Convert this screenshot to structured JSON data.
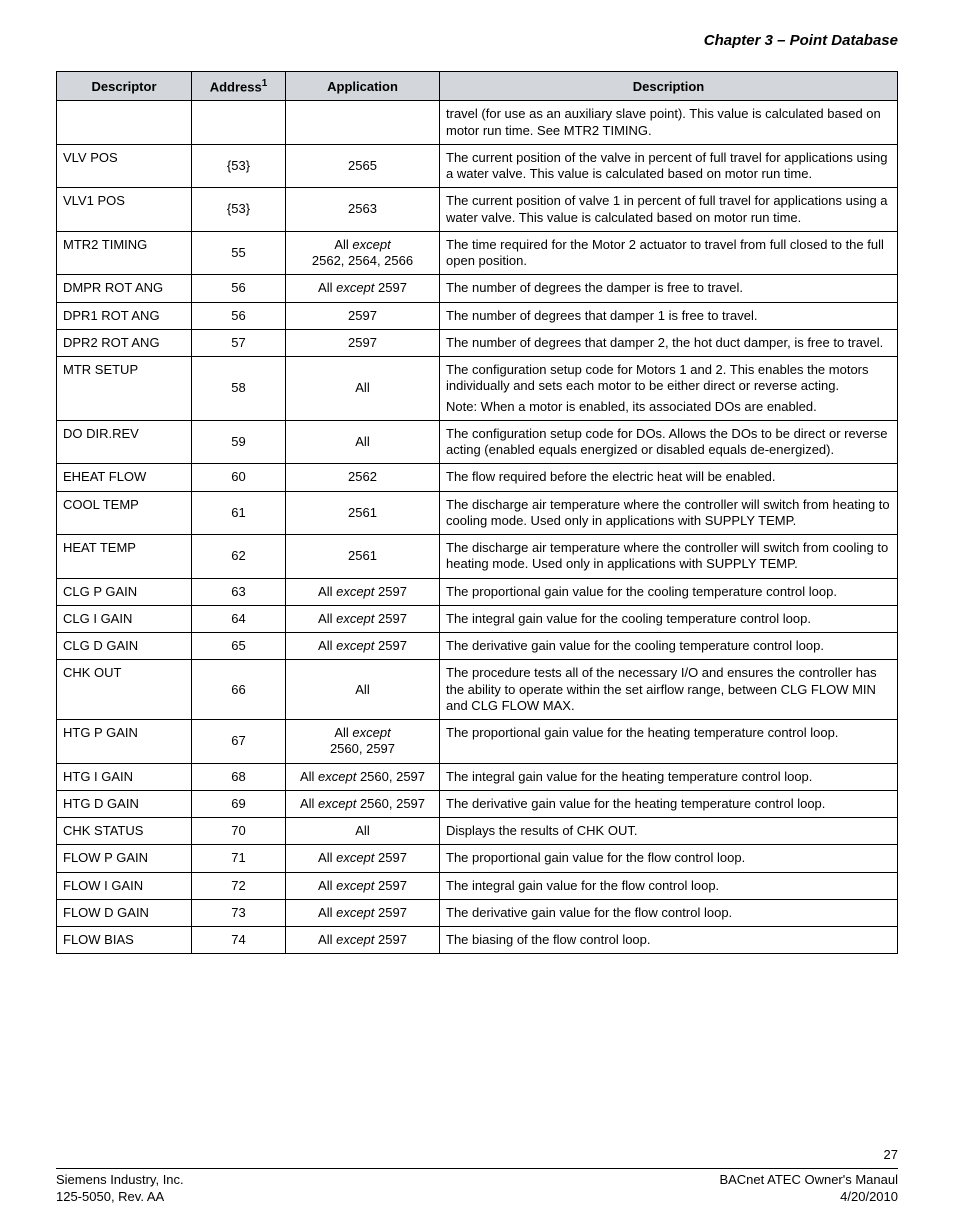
{
  "chapter_title": "Chapter 3 – Point Database",
  "table": {
    "header_bg": "#d3d7dc",
    "border_color": "#000000",
    "columns": [
      {
        "label": "Descriptor",
        "sup": ""
      },
      {
        "label": "Address",
        "sup": "1"
      },
      {
        "label": "Application",
        "sup": ""
      },
      {
        "label": "Description",
        "sup": ""
      }
    ],
    "rows": [
      {
        "descriptor": "",
        "address": "",
        "application": "",
        "description": [
          "travel (for use as an auxiliary slave point). This value is calculated based on motor run time. See MTR2 TIMING."
        ]
      },
      {
        "descriptor": "VLV POS",
        "address": "{53}",
        "application": "2565",
        "description": [
          "The current position of the valve in percent of full travel for applications using a water valve. This value is calculated based on motor run time."
        ]
      },
      {
        "descriptor": "VLV1 POS",
        "address": "{53}",
        "application": "2563",
        "description": [
          "The current position of valve 1 in percent of full travel for applications using a water valve. This value is calculated based on motor run time."
        ]
      },
      {
        "descriptor": "MTR2 TIMING",
        "address": "55",
        "application": "All <i>except</i>\n2562, 2564, 2566",
        "description": [
          "The time required for the Motor 2 actuator to travel from full closed to the full open position."
        ]
      },
      {
        "descriptor": "DMPR ROT ANG",
        "address": "56",
        "application": "All <i>except</i> 2597",
        "description": [
          "The number of degrees the damper is free to travel."
        ]
      },
      {
        "descriptor": "DPR1 ROT ANG",
        "address": "56",
        "application": "2597",
        "description": [
          "The number of degrees that damper 1 is free to travel."
        ]
      },
      {
        "descriptor": "DPR2 ROT ANG",
        "address": "57",
        "application": "2597",
        "description": [
          "The number of degrees that damper 2, the hot duct damper, is free to travel."
        ]
      },
      {
        "descriptor": "MTR SETUP",
        "address": "58",
        "application": "All",
        "description": [
          "The configuration setup code for Motors 1 and 2. This enables the motors individually and sets each motor to be either direct or reverse acting.",
          "Note: When a motor is enabled, its associated DOs are enabled."
        ]
      },
      {
        "descriptor": "DO DIR.REV",
        "address": "59",
        "application": "All",
        "description": [
          "The configuration setup code for DOs. Allows the DOs to be direct or reverse acting (enabled equals energized or disabled equals de-energized)."
        ]
      },
      {
        "descriptor": "EHEAT FLOW",
        "address": "60",
        "application": "2562",
        "description": [
          "The flow required before the electric heat will be enabled."
        ]
      },
      {
        "descriptor": "COOL TEMP",
        "address": "61",
        "application": "2561",
        "description": [
          "The discharge air temperature where the controller will switch from heating to cooling mode. Used only in applications with SUPPLY TEMP."
        ]
      },
      {
        "descriptor": "HEAT TEMP",
        "address": "62",
        "application": "2561",
        "description": [
          "The discharge air temperature where the controller will switch from cooling to heating mode. Used only in applications with SUPPLY TEMP."
        ]
      },
      {
        "descriptor": "CLG P GAIN",
        "address": "63",
        "application": "All <i>except</i> 2597",
        "description": [
          "The proportional gain value for the cooling temperature control loop."
        ]
      },
      {
        "descriptor": "CLG I GAIN",
        "address": "64",
        "application": "All <i>except</i> 2597",
        "description": [
          "The integral gain value for the cooling temperature control loop."
        ]
      },
      {
        "descriptor": "CLG D GAIN",
        "address": "65",
        "application": "All <i>except</i> 2597",
        "description": [
          "The derivative gain value for the cooling temperature control loop."
        ]
      },
      {
        "descriptor": "CHK OUT",
        "address": "66",
        "application": "All",
        "description": [
          "The procedure tests all of the necessary I/O and ensures the controller has the ability to operate within the set airflow range, between CLG FLOW MIN and CLG FLOW MAX."
        ]
      },
      {
        "descriptor": "HTG P GAIN",
        "address": "67",
        "application": "All <i>except</i>\n2560, 2597",
        "description": [
          "The proportional gain value for the heating temperature control loop."
        ]
      },
      {
        "descriptor": "HTG I GAIN",
        "address": "68",
        "application": "All <i>except</i> 2560, 2597",
        "description": [
          "The integral gain value for the heating temperature control loop."
        ]
      },
      {
        "descriptor": "HTG D GAIN",
        "address": "69",
        "application": "All <i>except</i> 2560, 2597",
        "description": [
          "The derivative gain value for the heating temperature control loop."
        ]
      },
      {
        "descriptor": "CHK STATUS",
        "address": "70",
        "application": "All",
        "description": [
          "Displays the results of CHK OUT."
        ]
      },
      {
        "descriptor": "FLOW P GAIN",
        "address": "71",
        "application": "All <i>except</i> 2597",
        "description": [
          "The proportional gain value for the flow control loop."
        ]
      },
      {
        "descriptor": "FLOW I GAIN",
        "address": "72",
        "application": "All <i>except</i> 2597",
        "description": [
          "The integral gain value for the flow control loop."
        ]
      },
      {
        "descriptor": "FLOW D GAIN",
        "address": "73",
        "application": "All <i>except</i> 2597",
        "description": [
          "The derivative gain value for the flow control loop."
        ]
      },
      {
        "descriptor": "FLOW BIAS",
        "address": "74",
        "application": "All <i>except</i> 2597",
        "description": [
          "The biasing of the flow control loop."
        ]
      }
    ]
  },
  "footer": {
    "page_number": "27",
    "left_line1": "Siemens Industry, Inc.",
    "left_line2": "125-5050, Rev. AA",
    "right_line1": "BACnet ATEC Owner's Manaul",
    "right_line2": "4/20/2010"
  }
}
